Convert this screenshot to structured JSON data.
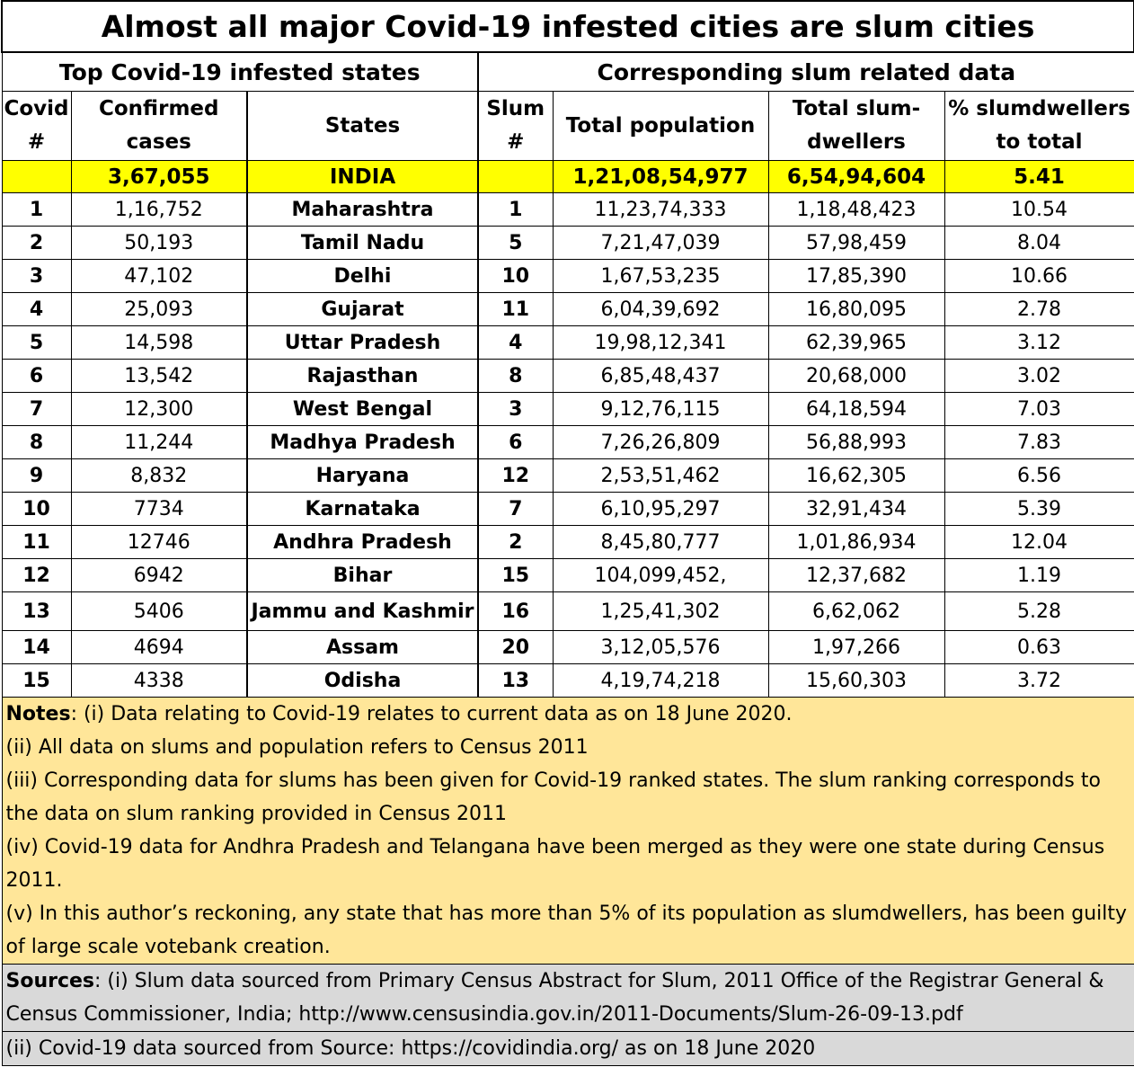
{
  "title": "Almost all major Covid-19 infested cities are slum cities",
  "sections": {
    "left": "Top Covid-19 infested states",
    "right": "Corresponding slum related data"
  },
  "headers": {
    "covid_rank": "Covid #",
    "confirmed": "Confirmed cases",
    "states": "States",
    "slum_rank": "Slum #",
    "population": "Total population",
    "slumdwellers": "Total slum-dwellers",
    "percent": "% slumdwellers to total"
  },
  "india": {
    "confirmed": "3,67,055",
    "state": "INDIA",
    "population": "1,21,08,54,977",
    "slumdwellers": "6,54,94,604",
    "percent": "5.41"
  },
  "rows": [
    {
      "covid": "1",
      "confirmed": "1,16,752",
      "state": "Maharashtra",
      "slum": "1",
      "population": "11,23,74,333",
      "slumdwellers": "1,18,48,423",
      "percent": "10.54"
    },
    {
      "covid": "2",
      "confirmed": "50,193",
      "state": "Tamil Nadu",
      "slum": "5",
      "population": "7,21,47,039",
      "slumdwellers": "57,98,459",
      "percent": "8.04"
    },
    {
      "covid": "3",
      "confirmed": "47,102",
      "state": "Delhi",
      "slum": "10",
      "population": "1,67,53,235",
      "slumdwellers": "17,85,390",
      "percent": "10.66"
    },
    {
      "covid": "4",
      "confirmed": "25,093",
      "state": "Gujarat",
      "slum": "11",
      "population": "6,04,39,692",
      "slumdwellers": "16,80,095",
      "percent": "2.78"
    },
    {
      "covid": "5",
      "confirmed": "14,598",
      "state": "Uttar Pradesh",
      "slum": "4",
      "population": "19,98,12,341",
      "slumdwellers": "62,39,965",
      "percent": "3.12"
    },
    {
      "covid": "6",
      "confirmed": "13,542",
      "state": "Rajasthan",
      "slum": "8",
      "population": "6,85,48,437",
      "slumdwellers": "20,68,000",
      "percent": "3.02"
    },
    {
      "covid": "7",
      "confirmed": "12,300",
      "state": "West Bengal",
      "slum": "3",
      "population": "9,12,76,115",
      "slumdwellers": "64,18,594",
      "percent": "7.03"
    },
    {
      "covid": "8",
      "confirmed": "11,244",
      "state": "Madhya Pradesh",
      "slum": "6",
      "population": "7,26,26,809",
      "slumdwellers": "56,88,993",
      "percent": "7.83"
    },
    {
      "covid": "9",
      "confirmed": "8,832",
      "state": "Haryana",
      "slum": "12",
      "population": "2,53,51,462",
      "slumdwellers": "16,62,305",
      "percent": "6.56"
    },
    {
      "covid": "10",
      "confirmed": "7734",
      "state": "Karnataka",
      "slum": "7",
      "population": "6,10,95,297",
      "slumdwellers": "32,91,434",
      "percent": "5.39"
    },
    {
      "covid": "11",
      "confirmed": "12746",
      "state": "Andhra Pradesh",
      "slum": "2",
      "population": "8,45,80,777",
      "slumdwellers": "1,01,86,934",
      "percent": "12.04"
    },
    {
      "covid": "12",
      "confirmed": "6942",
      "state": "Bihar",
      "slum": "15",
      "population": "104,099,452,",
      "slumdwellers": "12,37,682",
      "percent": "1.19"
    },
    {
      "covid": "13",
      "confirmed": "5406",
      "state": "Jammu and Kashmir",
      "slum": "16",
      "population": "1,25,41,302",
      "slumdwellers": "6,62,062",
      "percent": "5.28"
    },
    {
      "covid": "14",
      "confirmed": "4694",
      "state": "Assam",
      "slum": "20",
      "population": "3,12,05,576",
      "slumdwellers": "1,97,266",
      "percent": "0.63"
    },
    {
      "covid": "15",
      "confirmed": "4338",
      "state": "Odisha",
      "slum": "13",
      "population": "4,19,74,218",
      "slumdwellers": "15,60,303",
      "percent": "3.72"
    }
  ],
  "notes": {
    "label": "Notes",
    "lines": [
      ":  (i) Data relating to Covid-19 relates to current data as on 18 June 2020.",
      "(ii) All data on slums and population refers to Census 2011",
      "(iii) Corresponding data for slums has been given for Covid-19 ranked  states.  The slum ranking corresponds to the data on slum ranking provided in Census 2011",
      "(iv) Covid-19 data for Andhra Pradesh and Telangana have been merged as they were one state during Census 2011.",
      "(v) In this author’s reckoning, any state that has more than 5% of its population as slumdwellers, has been guilty of large scale votebank creation."
    ]
  },
  "sources": {
    "label": "Sources",
    "line1": ": (i) Slum data sourced from  Primary Census Abstract for Slum, 2011 Office of the Registrar General & Census Commissioner, India; http://www.censusindia.gov.in/2011-Documents/Slum-26-09-13.pdf",
    "line2": "(ii) Covid-19 data sourced from Source: https://covidindia.org/ as on 18 June 2020"
  },
  "colors": {
    "india_row": "#ffff00",
    "notes_bg": "#ffe699",
    "sources_bg": "#d9d9d9"
  }
}
